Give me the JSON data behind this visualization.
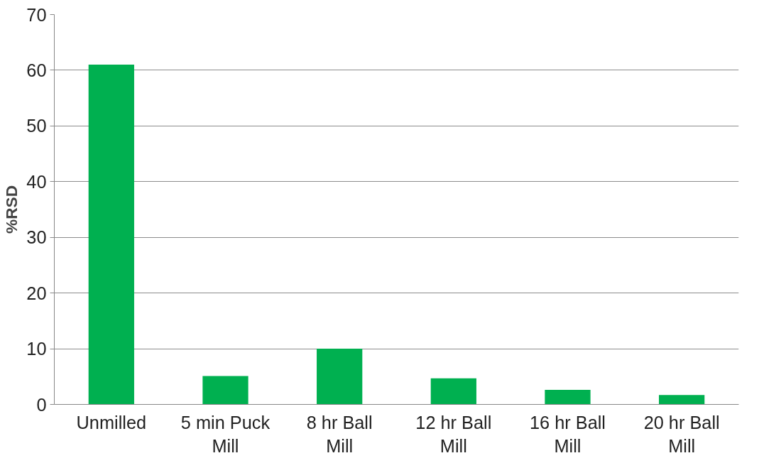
{
  "chart_data": {
    "type": "bar",
    "ylabel": "%RSD",
    "categories": [
      "Unmilled",
      "5 min Puck Mill",
      "8 hr Ball Mill",
      "12 hr Ball Mill",
      "16 hr Ball Mill",
      "20 hr Ball Mill"
    ],
    "values": [
      61,
      5.1,
      10,
      4.7,
      2.6,
      1.7
    ],
    "color": "#00b050",
    "ylim": [
      0,
      70
    ],
    "yticks": [
      0,
      10,
      20,
      30,
      40,
      50,
      60,
      70
    ],
    "grid": "y"
  }
}
